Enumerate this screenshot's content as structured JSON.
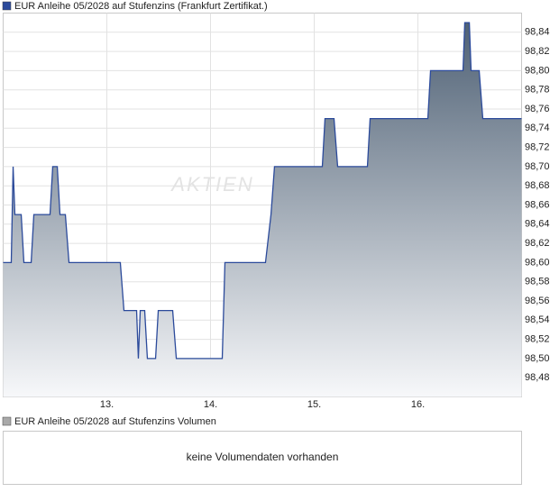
{
  "chart_data": {
    "type": "area",
    "series": [
      {
        "name": "EUR Anleihe 05/2028 auf Stufenzins (Frankfurt Zertifikat.)",
        "color": "#2b4a9b",
        "x": [
          12.0,
          12.078,
          12.096,
          12.113,
          12.174,
          12.2,
          12.27,
          12.296,
          12.452,
          12.478,
          12.522,
          12.548,
          12.6,
          12.635,
          13.13,
          13.165,
          13.287,
          13.304,
          13.322,
          13.365,
          13.391,
          13.47,
          13.496,
          13.635,
          13.67,
          14.113,
          14.139,
          14.53,
          14.583,
          14.617,
          15.078,
          15.104,
          15.191,
          15.226,
          15.513,
          15.539,
          16.096,
          16.122,
          16.435,
          16.452,
          16.496,
          16.513,
          16.591,
          16.626,
          17.0
        ],
        "values": [
          98.6,
          98.6,
          98.7,
          98.65,
          98.65,
          98.6,
          98.6,
          98.65,
          98.65,
          98.7,
          98.7,
          98.65,
          98.65,
          98.6,
          98.6,
          98.55,
          98.55,
          98.5,
          98.55,
          98.55,
          98.5,
          98.5,
          98.55,
          98.55,
          98.5,
          98.5,
          98.6,
          98.6,
          98.65,
          98.7,
          98.7,
          98.75,
          98.75,
          98.7,
          98.7,
          98.75,
          98.75,
          98.8,
          98.8,
          98.85,
          98.85,
          98.8,
          98.8,
          98.75,
          98.75
        ]
      }
    ],
    "xlim": [
      12,
      17
    ],
    "xticks": [
      {
        "value": 13,
        "label": "13."
      },
      {
        "value": 14,
        "label": "14."
      },
      {
        "value": 15,
        "label": "15."
      },
      {
        "value": 16,
        "label": "16."
      }
    ],
    "ylim": [
      98.46,
      98.86
    ],
    "yticks": [
      {
        "value": 98.48,
        "label": "98,48"
      },
      {
        "value": 98.5,
        "label": "98,50"
      },
      {
        "value": 98.52,
        "label": "98,52"
      },
      {
        "value": 98.54,
        "label": "98,54"
      },
      {
        "value": 98.56,
        "label": "98,56"
      },
      {
        "value": 98.58,
        "label": "98,58"
      },
      {
        "value": 98.6,
        "label": "98,60"
      },
      {
        "value": 98.62,
        "label": "98,62"
      },
      {
        "value": 98.64,
        "label": "98,64"
      },
      {
        "value": 98.66,
        "label": "98,66"
      },
      {
        "value": 98.68,
        "label": "98,68"
      },
      {
        "value": 98.7,
        "label": "98,70"
      },
      {
        "value": 98.72,
        "label": "98,72"
      },
      {
        "value": 98.74,
        "label": "98,74"
      },
      {
        "value": 98.76,
        "label": "98,76"
      },
      {
        "value": 98.78,
        "label": "98,78"
      },
      {
        "value": 98.8,
        "label": "98,80"
      },
      {
        "value": 98.82,
        "label": "98,82"
      },
      {
        "value": 98.84,
        "label": "98,84"
      }
    ],
    "grid": true,
    "watermark": "AKTIEN"
  },
  "volume_panel": {
    "title": "EUR Anleihe 05/2028 auf Stufenzins Volumen",
    "color": "#a9a9a9",
    "message": "keine Volumendaten vorhanden"
  }
}
